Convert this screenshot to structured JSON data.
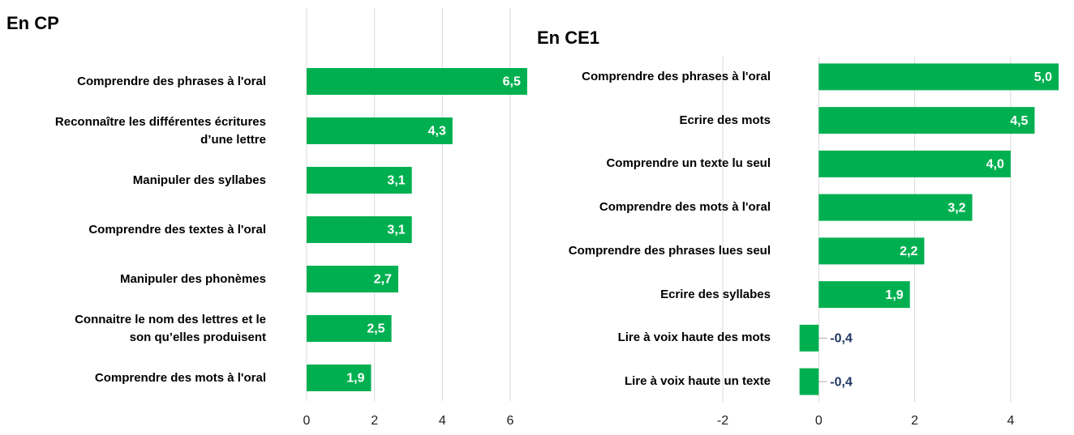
{
  "chart_data": [
    {
      "type": "bar",
      "title": "En CP",
      "categories": [
        "Comprendre des phrases à l'oral",
        "Reconnaître les différentes écritures\nd’une lettre",
        "Manipuler des syllabes",
        "Comprendre des textes à l'oral",
        "Manipuler des phonèmes",
        "Connaitre le nom des lettres et le\nson qu’elles produisent",
        "Comprendre des mots à l'oral"
      ],
      "values": [
        6.5,
        4.3,
        3.1,
        3.1,
        2.7,
        2.5,
        1.9
      ],
      "value_labels": [
        "6,5",
        "4,3",
        "3,1",
        "3,1",
        "2,7",
        "2,5",
        "1,9"
      ],
      "color": "#00b050",
      "label_color": "#ffffff",
      "negative_label_color": "#1f3864",
      "xlim": [
        0,
        6.55
      ],
      "xticks": [
        0,
        2,
        4,
        6
      ],
      "grid": true
    },
    {
      "type": "bar",
      "title": "En CE1",
      "categories": [
        "Comprendre des phrases à l'oral",
        "Ecrire des mots",
        "Comprendre un texte lu seul",
        "Comprendre des mots à l'oral",
        "Comprendre des phrases lues seul",
        "Ecrire des syllabes",
        "Lire à voix haute des mots",
        "Lire à voix haute un texte"
      ],
      "values": [
        5.0,
        4.5,
        4.0,
        3.2,
        2.2,
        1.9,
        -0.4,
        -0.4
      ],
      "value_labels": [
        "5,0",
        "4,5",
        "4,0",
        "3,2",
        "2,2",
        "1,9",
        "-0,4",
        "-0,4"
      ],
      "color": "#00b050",
      "label_color": "#ffffff",
      "negative_label_color": "#1f3864",
      "xlim": [
        -2,
        5.05
      ],
      "xticks": [
        -2,
        0,
        2,
        4
      ],
      "grid": true
    }
  ]
}
